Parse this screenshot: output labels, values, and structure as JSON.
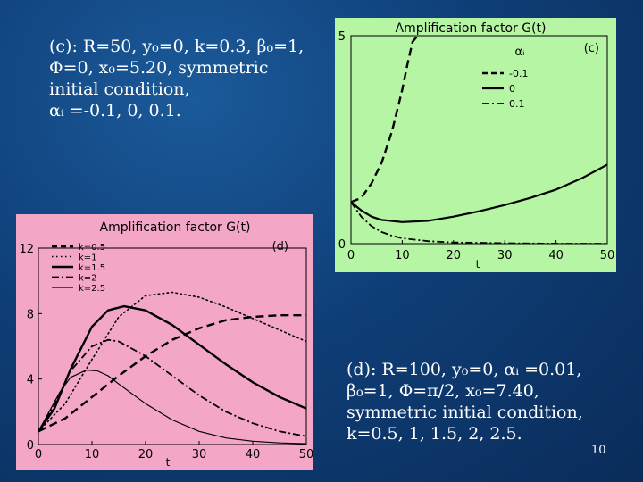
{
  "slide_number": "10",
  "captions": {
    "c": [
      "(c): R=50, y₀=0, k=0.3, β₀=1,",
      "Φ=0, x₀=5.20, symmetric",
      "initial condition,",
      "αᵢ =-0.1, 0, 0.1."
    ],
    "d": [
      "(d): R=100, y₀=0, αᵢ =0.01,",
      "β₀=1, Φ=π/2, x₀=7.40,",
      "symmetric initial condition,",
      "k=0.5, 1, 1.5, 2, 2.5."
    ]
  },
  "chart_data": [
    {
      "id": "c",
      "type": "line",
      "title": "Amplification factor G(t)",
      "panel_label": "(c)",
      "xlabel": "t",
      "legend_title": "αᵢ",
      "legend_position": "top-right",
      "background": "#b6f5a3",
      "xlim": [
        0,
        50
      ],
      "ylim": [
        0,
        5
      ],
      "xticks": [
        0,
        10,
        20,
        30,
        40,
        50
      ],
      "yticks": [
        0,
        5
      ],
      "series": [
        {
          "name": "-0.1",
          "style": "dashed",
          "width": 2.4,
          "x": [
            0,
            2,
            4,
            6,
            8,
            10,
            11,
            12,
            13
          ],
          "y": [
            1.0,
            1.1,
            1.45,
            1.95,
            2.7,
            3.7,
            4.3,
            4.85,
            5.0
          ]
        },
        {
          "name": "0",
          "style": "solid",
          "width": 2.2,
          "x": [
            0,
            2,
            4,
            6,
            10,
            15,
            20,
            25,
            30,
            35,
            40,
            45,
            50
          ],
          "y": [
            1.0,
            0.8,
            0.65,
            0.57,
            0.52,
            0.55,
            0.65,
            0.78,
            0.93,
            1.1,
            1.3,
            1.57,
            1.9
          ]
        },
        {
          "name": "0.1",
          "style": "dashdot",
          "width": 1.8,
          "x": [
            0,
            2,
            4,
            6,
            8,
            10,
            15,
            20,
            30,
            40,
            50
          ],
          "y": [
            1.0,
            0.65,
            0.42,
            0.28,
            0.19,
            0.13,
            0.06,
            0.03,
            0.01,
            0.0,
            0.0
          ]
        }
      ]
    },
    {
      "id": "d",
      "type": "line",
      "title": "Amplification factor G(t)",
      "panel_label": "(d)",
      "xlabel": "t",
      "legend_position": "top-left",
      "background": "#f4a6c6",
      "xlim": [
        0,
        50
      ],
      "ylim": [
        0,
        12
      ],
      "xticks": [
        0,
        10,
        20,
        30,
        40,
        50
      ],
      "yticks": [
        0,
        4,
        8,
        12
      ],
      "series": [
        {
          "name": "k=0.5",
          "style": "dashed",
          "width": 2.4,
          "x": [
            0,
            5,
            10,
            15,
            20,
            25,
            30,
            35,
            40,
            45,
            50
          ],
          "y": [
            0.8,
            1.6,
            2.9,
            4.2,
            5.4,
            6.4,
            7.1,
            7.6,
            7.8,
            7.9,
            7.9
          ]
        },
        {
          "name": "k=1",
          "style": "dotted",
          "width": 1.6,
          "x": [
            0,
            5,
            10,
            15,
            20,
            25,
            30,
            35,
            40,
            45,
            50
          ],
          "y": [
            0.8,
            2.5,
            5.2,
            7.8,
            9.1,
            9.3,
            9.0,
            8.4,
            7.7,
            7.0,
            6.3
          ]
        },
        {
          "name": "k=1.5",
          "style": "solid",
          "width": 2.4,
          "x": [
            0,
            3,
            6,
            10,
            13,
            16,
            20,
            25,
            30,
            35,
            40,
            45,
            50
          ],
          "y": [
            0.8,
            2.2,
            4.6,
            7.2,
            8.2,
            8.45,
            8.2,
            7.3,
            6.1,
            4.9,
            3.8,
            2.9,
            2.2
          ]
        },
        {
          "name": "k=2",
          "style": "dashdot",
          "width": 1.8,
          "x": [
            0,
            3,
            6,
            10,
            13,
            15,
            20,
            25,
            30,
            35,
            40,
            45,
            50
          ],
          "y": [
            0.8,
            2.4,
            4.5,
            6.0,
            6.4,
            6.3,
            5.4,
            4.2,
            3.0,
            2.0,
            1.3,
            0.8,
            0.5
          ]
        },
        {
          "name": "k=2.5",
          "style": "solid",
          "width": 1.2,
          "x": [
            0,
            2,
            4,
            6,
            9,
            11,
            13,
            15,
            20,
            25,
            30,
            35,
            40,
            45,
            50
          ],
          "y": [
            0.8,
            2.0,
            3.2,
            4.1,
            4.55,
            4.5,
            4.2,
            3.7,
            2.5,
            1.5,
            0.8,
            0.4,
            0.2,
            0.1,
            0.05
          ]
        }
      ]
    }
  ]
}
